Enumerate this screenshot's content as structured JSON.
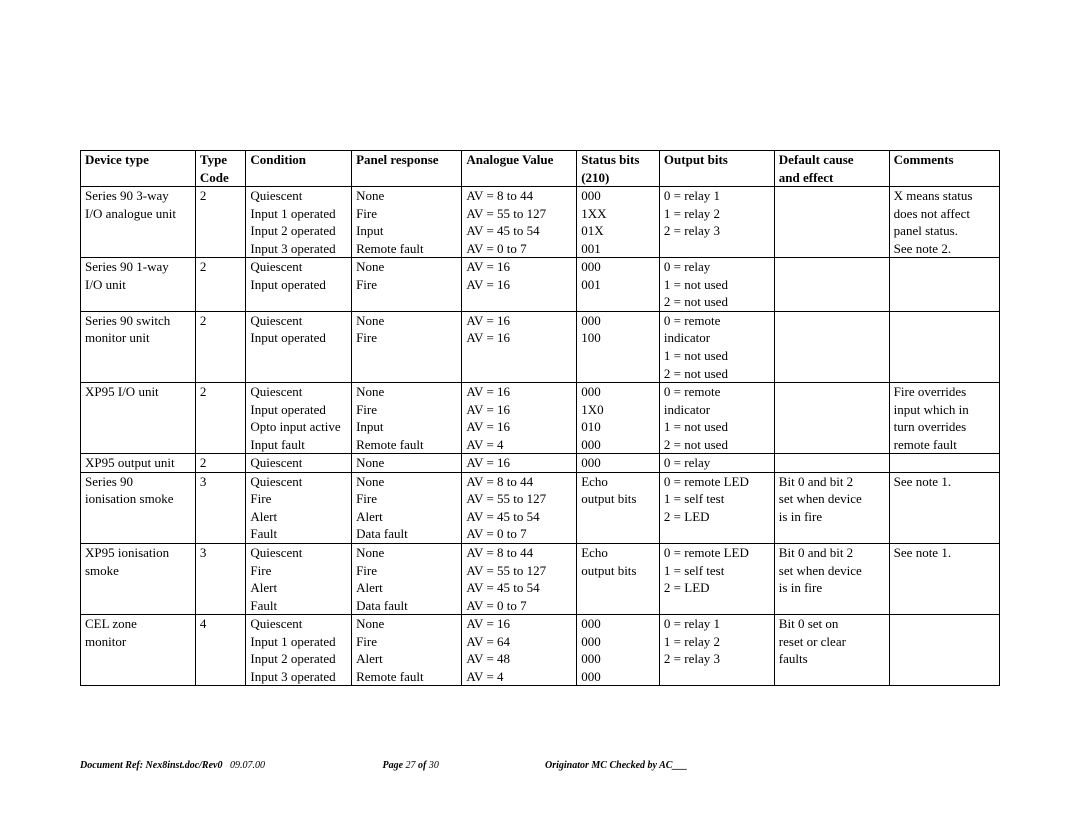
{
  "table": {
    "columns": [
      {
        "label": "Device type"
      },
      {
        "label": "Type\nCode"
      },
      {
        "label": "Condition"
      },
      {
        "label": "Panel response"
      },
      {
        "label": "Analogue Value"
      },
      {
        "label": "Status bits\n(210)"
      },
      {
        "label": "Output bits"
      },
      {
        "label": "Default cause\nand effect"
      },
      {
        "label": "Comments"
      }
    ],
    "rows": [
      [
        "Series 90 3-way\nI/O analogue unit",
        "2",
        "Quiescent\nInput 1 operated\nInput 2 operated\nInput 3 operated",
        "None\nFire\nInput\nRemote fault",
        "AV = 8 to 44\nAV = 55 to 127\nAV = 45 to 54\nAV = 0 to 7",
        "000\n1XX\n01X\n001",
        "0 = relay 1\n1 = relay 2\n2 = relay 3",
        "",
        "X means status\ndoes not affect\npanel status.\nSee note 2."
      ],
      [
        "Series 90 1-way\nI/O unit",
        "2",
        "Quiescent\nInput operated",
        "None\nFire",
        "AV = 16\nAV = 16",
        "000\n001",
        "0 = relay\n1 = not used\n2 = not used",
        "",
        ""
      ],
      [
        "Series 90 switch\nmonitor unit",
        "2",
        "Quiescent\nInput operated",
        "None\nFire",
        "AV = 16\nAV = 16",
        "000\n100",
        "0 = remote\nindicator\n1 = not used\n2 = not used",
        "",
        ""
      ],
      [
        "XP95 I/O unit",
        "2",
        "Quiescent\nInput operated\nOpto input active\nInput fault",
        "None\nFire\nInput\nRemote fault",
        "AV = 16\nAV = 16\nAV = 16\nAV = 4",
        "000\n1X0\n010\n000",
        "0 = remote\nindicator\n1 = not used\n2 = not used",
        "",
        "Fire overrides\ninput which in\nturn overrides\nremote fault"
      ],
      [
        "XP95 output unit",
        "2",
        "Quiescent",
        "None",
        "AV = 16",
        "000",
        "0 = relay",
        "",
        ""
      ],
      [
        "Series 90\nionisation smoke",
        "3",
        "Quiescent\nFire\nAlert\nFault",
        "None\nFire\nAlert\nData fault",
        "AV = 8 to 44\nAV = 55 to 127\nAV = 45 to 54\nAV = 0 to 7",
        "Echo\noutput bits",
        "0 = remote LED\n1 = self test\n2 = LED",
        "Bit 0 and bit 2\nset when device\nis in fire",
        "See note 1."
      ],
      [
        "XP95 ionisation\nsmoke",
        "3",
        "Quiescent\nFire\nAlert\nFault",
        "None\nFire\nAlert\nData fault",
        "AV = 8 to 44\nAV = 55 to 127\nAV = 45 to 54\nAV = 0 to 7",
        "Echo\noutput bits",
        "0 = remote LED\n1 = self test\n2 = LED",
        "Bit 0 and bit 2\nset when device\nis in fire",
        "See note 1."
      ],
      [
        "CEL zone\nmonitor",
        "4",
        "Quiescent\nInput 1 operated\nInput 2 operated\nInput 3 operated",
        "None\nFire\nAlert\nRemote fault",
        "AV = 16\nAV = 64\nAV = 48\nAV = 4",
        "000\n000\n000\n000",
        "0 = relay 1\n1 = relay 2\n2 = relay 3",
        "Bit 0 set on\nreset or clear\nfaults",
        ""
      ]
    ],
    "border_color": "#000000",
    "header_font_weight": "bold",
    "cell_fontsize": 13
  },
  "footer": {
    "doc_ref_label": "Document Ref: Nex8inst.doc/Rev0",
    "date": "09.07.00",
    "page_label": "Page ",
    "page_current": "27",
    "page_of": " of ",
    "page_total": "30",
    "originator": "Originator MC  Checked by AC___"
  }
}
